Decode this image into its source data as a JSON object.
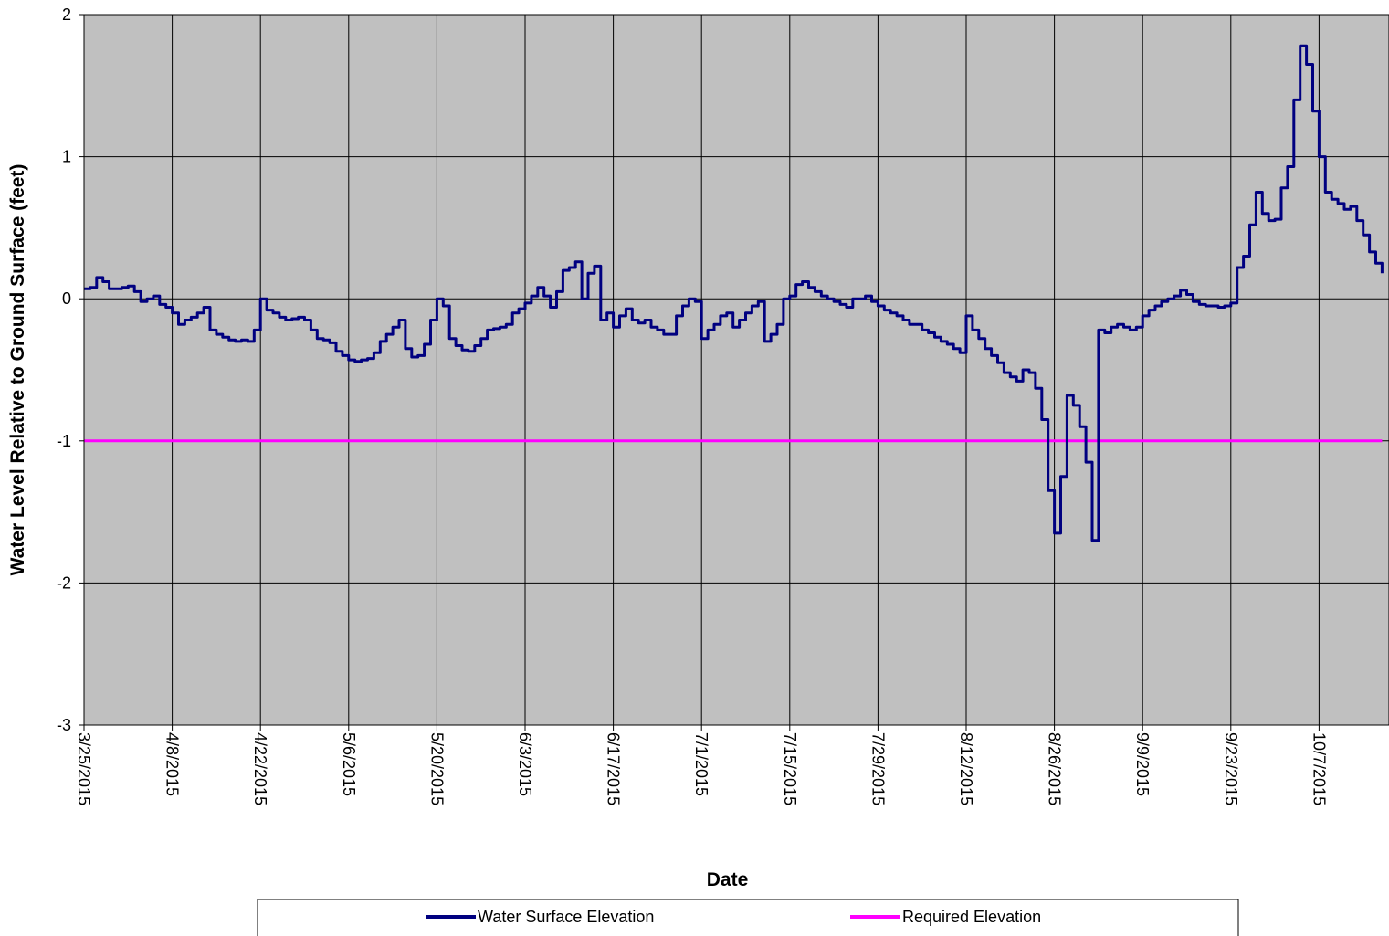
{
  "chart_data": {
    "type": "line",
    "title": "",
    "xlabel": "Date",
    "ylabel": "Water Level Relative to Ground Surface (feet)",
    "x_ticks": [
      "3/25/2015",
      "4/8/2015",
      "4/22/2015",
      "5/6/2015",
      "5/20/2015",
      "6/3/2015",
      "6/17/2015",
      "7/1/2015",
      "7/15/2015",
      "7/29/2015",
      "8/12/2015",
      "8/26/2015",
      "9/9/2015",
      "9/23/2015",
      "10/7/2015"
    ],
    "xlim": [
      "3/25/2015",
      "10/17/2015"
    ],
    "ylim": [
      -3,
      2
    ],
    "y_ticks": [
      2,
      1,
      0,
      -1,
      -2,
      -3
    ],
    "grid": true,
    "plot_background": "#c0c0c0",
    "legend_position": "bottom",
    "series": [
      {
        "name": "Water Surface Elevation",
        "color": "#000080",
        "step": true,
        "points": [
          [
            "3/25/2015",
            0.07
          ],
          [
            "3/26/2015",
            0.08
          ],
          [
            "3/27/2015",
            0.15
          ],
          [
            "3/28/2015",
            0.12
          ],
          [
            "3/29/2015",
            0.07
          ],
          [
            "3/31/2015",
            0.08
          ],
          [
            "4/1/2015",
            0.09
          ],
          [
            "4/2/2015",
            0.05
          ],
          [
            "4/3/2015",
            -0.02
          ],
          [
            "4/4/2015",
            0.0
          ],
          [
            "4/5/2015",
            0.02
          ],
          [
            "4/6/2015",
            -0.04
          ],
          [
            "4/7/2015",
            -0.06
          ],
          [
            "4/8/2015",
            -0.1
          ],
          [
            "4/9/2015",
            -0.18
          ],
          [
            "4/10/2015",
            -0.15
          ],
          [
            "4/11/2015",
            -0.13
          ],
          [
            "4/12/2015",
            -0.1
          ],
          [
            "4/13/2015",
            -0.06
          ],
          [
            "4/14/2015",
            -0.22
          ],
          [
            "4/15/2015",
            -0.25
          ],
          [
            "4/16/2015",
            -0.27
          ],
          [
            "4/17/2015",
            -0.29
          ],
          [
            "4/18/2015",
            -0.3
          ],
          [
            "4/19/2015",
            -0.29
          ],
          [
            "4/20/2015",
            -0.3
          ],
          [
            "4/21/2015",
            -0.22
          ],
          [
            "4/22/2015",
            0.0
          ],
          [
            "4/23/2015",
            -0.08
          ],
          [
            "4/24/2015",
            -0.1
          ],
          [
            "4/25/2015",
            -0.13
          ],
          [
            "4/26/2015",
            -0.15
          ],
          [
            "4/27/2015",
            -0.14
          ],
          [
            "4/28/2015",
            -0.13
          ],
          [
            "4/29/2015",
            -0.15
          ],
          [
            "4/30/2015",
            -0.22
          ],
          [
            "5/1/2015",
            -0.28
          ],
          [
            "5/2/2015",
            -0.29
          ],
          [
            "5/3/2015",
            -0.31
          ],
          [
            "5/4/2015",
            -0.37
          ],
          [
            "5/5/2015",
            -0.4
          ],
          [
            "5/6/2015",
            -0.43
          ],
          [
            "5/7/2015",
            -0.44
          ],
          [
            "5/8/2015",
            -0.43
          ],
          [
            "5/9/2015",
            -0.42
          ],
          [
            "5/10/2015",
            -0.38
          ],
          [
            "5/11/2015",
            -0.3
          ],
          [
            "5/12/2015",
            -0.25
          ],
          [
            "5/13/2015",
            -0.2
          ],
          [
            "5/14/2015",
            -0.15
          ],
          [
            "5/15/2015",
            -0.35
          ],
          [
            "5/16/2015",
            -0.41
          ],
          [
            "5/17/2015",
            -0.4
          ],
          [
            "5/18/2015",
            -0.32
          ],
          [
            "5/19/2015",
            -0.15
          ],
          [
            "5/20/2015",
            0.0
          ],
          [
            "5/21/2015",
            -0.05
          ],
          [
            "5/22/2015",
            -0.28
          ],
          [
            "5/23/2015",
            -0.33
          ],
          [
            "5/24/2015",
            -0.36
          ],
          [
            "5/25/2015",
            -0.37
          ],
          [
            "5/26/2015",
            -0.33
          ],
          [
            "5/27/2015",
            -0.28
          ],
          [
            "5/28/2015",
            -0.22
          ],
          [
            "5/29/2015",
            -0.21
          ],
          [
            "5/30/2015",
            -0.2
          ],
          [
            "5/31/2015",
            -0.18
          ],
          [
            "6/1/2015",
            -0.1
          ],
          [
            "6/2/2015",
            -0.07
          ],
          [
            "6/3/2015",
            -0.03
          ],
          [
            "6/4/2015",
            0.02
          ],
          [
            "6/5/2015",
            0.08
          ],
          [
            "6/6/2015",
            0.02
          ],
          [
            "6/7/2015",
            -0.06
          ],
          [
            "6/8/2015",
            0.05
          ],
          [
            "6/9/2015",
            0.2
          ],
          [
            "6/10/2015",
            0.22
          ],
          [
            "6/11/2015",
            0.26
          ],
          [
            "6/12/2015",
            0.0
          ],
          [
            "6/13/2015",
            0.18
          ],
          [
            "6/14/2015",
            0.23
          ],
          [
            "6/15/2015",
            -0.15
          ],
          [
            "6/16/2015",
            -0.1
          ],
          [
            "6/17/2015",
            -0.2
          ],
          [
            "6/18/2015",
            -0.12
          ],
          [
            "6/19/2015",
            -0.07
          ],
          [
            "6/20/2015",
            -0.15
          ],
          [
            "6/21/2015",
            -0.17
          ],
          [
            "6/22/2015",
            -0.15
          ],
          [
            "6/23/2015",
            -0.2
          ],
          [
            "6/24/2015",
            -0.22
          ],
          [
            "6/25/2015",
            -0.25
          ],
          [
            "6/26/2015",
            -0.25
          ],
          [
            "6/27/2015",
            -0.12
          ],
          [
            "6/28/2015",
            -0.05
          ],
          [
            "6/29/2015",
            0.0
          ],
          [
            "6/30/2015",
            -0.02
          ],
          [
            "7/1/2015",
            -0.28
          ],
          [
            "7/2/2015",
            -0.22
          ],
          [
            "7/3/2015",
            -0.18
          ],
          [
            "7/4/2015",
            -0.12
          ],
          [
            "7/5/2015",
            -0.1
          ],
          [
            "7/6/2015",
            -0.2
          ],
          [
            "7/7/2015",
            -0.15
          ],
          [
            "7/8/2015",
            -0.1
          ],
          [
            "7/9/2015",
            -0.05
          ],
          [
            "7/10/2015",
            -0.02
          ],
          [
            "7/11/2015",
            -0.3
          ],
          [
            "7/12/2015",
            -0.25
          ],
          [
            "7/13/2015",
            -0.18
          ],
          [
            "7/14/2015",
            0.0
          ],
          [
            "7/15/2015",
            0.02
          ],
          [
            "7/16/2015",
            0.1
          ],
          [
            "7/17/2015",
            0.12
          ],
          [
            "7/18/2015",
            0.08
          ],
          [
            "7/19/2015",
            0.05
          ],
          [
            "7/20/2015",
            0.02
          ],
          [
            "7/21/2015",
            0.0
          ],
          [
            "7/22/2015",
            -0.02
          ],
          [
            "7/23/2015",
            -0.04
          ],
          [
            "7/24/2015",
            -0.06
          ],
          [
            "7/25/2015",
            0.0
          ],
          [
            "7/26/2015",
            0.0
          ],
          [
            "7/27/2015",
            0.02
          ],
          [
            "7/28/2015",
            -0.02
          ],
          [
            "7/29/2015",
            -0.05
          ],
          [
            "7/30/2015",
            -0.08
          ],
          [
            "7/31/2015",
            -0.1
          ],
          [
            "8/1/2015",
            -0.12
          ],
          [
            "8/2/2015",
            -0.15
          ],
          [
            "8/3/2015",
            -0.18
          ],
          [
            "8/4/2015",
            -0.18
          ],
          [
            "8/5/2015",
            -0.22
          ],
          [
            "8/6/2015",
            -0.24
          ],
          [
            "8/7/2015",
            -0.27
          ],
          [
            "8/8/2015",
            -0.3
          ],
          [
            "8/9/2015",
            -0.32
          ],
          [
            "8/10/2015",
            -0.35
          ],
          [
            "8/11/2015",
            -0.38
          ],
          [
            "8/12/2015",
            -0.12
          ],
          [
            "8/13/2015",
            -0.22
          ],
          [
            "8/14/2015",
            -0.28
          ],
          [
            "8/15/2015",
            -0.35
          ],
          [
            "8/16/2015",
            -0.4
          ],
          [
            "8/17/2015",
            -0.45
          ],
          [
            "8/18/2015",
            -0.52
          ],
          [
            "8/19/2015",
            -0.55
          ],
          [
            "8/20/2015",
            -0.58
          ],
          [
            "8/21/2015",
            -0.5
          ],
          [
            "8/22/2015",
            -0.52
          ],
          [
            "8/23/2015",
            -0.63
          ],
          [
            "8/24/2015",
            -0.85
          ],
          [
            "8/25/2015",
            -1.35
          ],
          [
            "8/26/2015",
            -1.65
          ],
          [
            "8/27/2015",
            -1.25
          ],
          [
            "8/28/2015",
            -0.68
          ],
          [
            "8/29/2015",
            -0.75
          ],
          [
            "8/30/2015",
            -0.9
          ],
          [
            "8/31/2015",
            -1.15
          ],
          [
            "9/1/2015",
            -1.7
          ],
          [
            "9/2/2015",
            -0.22
          ],
          [
            "9/3/2015",
            -0.24
          ],
          [
            "9/4/2015",
            -0.2
          ],
          [
            "9/5/2015",
            -0.18
          ],
          [
            "9/6/2015",
            -0.2
          ],
          [
            "9/7/2015",
            -0.22
          ],
          [
            "9/8/2015",
            -0.2
          ],
          [
            "9/9/2015",
            -0.12
          ],
          [
            "9/10/2015",
            -0.08
          ],
          [
            "9/11/2015",
            -0.05
          ],
          [
            "9/12/2015",
            -0.02
          ],
          [
            "9/13/2015",
            0.0
          ],
          [
            "9/14/2015",
            0.02
          ],
          [
            "9/15/2015",
            0.06
          ],
          [
            "9/16/2015",
            0.03
          ],
          [
            "9/17/2015",
            -0.02
          ],
          [
            "9/18/2015",
            -0.04
          ],
          [
            "9/19/2015",
            -0.05
          ],
          [
            "9/20/2015",
            -0.05
          ],
          [
            "9/21/2015",
            -0.06
          ],
          [
            "9/22/2015",
            -0.05
          ],
          [
            "9/23/2015",
            -0.03
          ],
          [
            "9/24/2015",
            0.22
          ],
          [
            "9/25/2015",
            0.3
          ],
          [
            "9/26/2015",
            0.52
          ],
          [
            "9/27/2015",
            0.75
          ],
          [
            "9/28/2015",
            0.6
          ],
          [
            "9/29/2015",
            0.55
          ],
          [
            "9/30/2015",
            0.56
          ],
          [
            "10/1/2015",
            0.78
          ],
          [
            "10/2/2015",
            0.93
          ],
          [
            "10/3/2015",
            1.4
          ],
          [
            "10/4/2015",
            1.78
          ],
          [
            "10/5/2015",
            1.65
          ],
          [
            "10/6/2015",
            1.32
          ],
          [
            "10/7/2015",
            1.0
          ],
          [
            "10/8/2015",
            0.75
          ],
          [
            "10/9/2015",
            0.7
          ],
          [
            "10/10/2015",
            0.67
          ],
          [
            "10/11/2015",
            0.63
          ],
          [
            "10/12/2015",
            0.65
          ],
          [
            "10/13/2015",
            0.55
          ],
          [
            "10/14/2015",
            0.45
          ],
          [
            "10/15/2015",
            0.33
          ],
          [
            "10/16/2015",
            0.25
          ],
          [
            "10/17/2015",
            0.18
          ]
        ]
      },
      {
        "name": "Required Elevation",
        "color": "#ff00ff",
        "points": [
          [
            "3/25/2015",
            -1
          ],
          [
            "10/17/2015",
            -1
          ]
        ]
      }
    ]
  }
}
